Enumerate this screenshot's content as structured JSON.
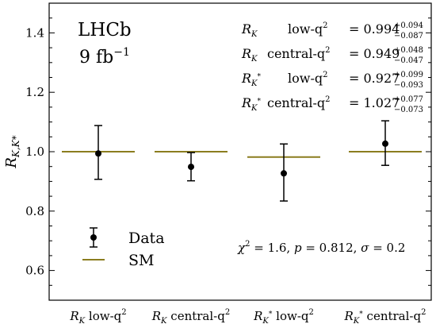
{
  "chart_data": {
    "type": "scatter",
    "experiment": "LHCb",
    "luminosity": "9 fb⁻¹",
    "ylabel": "R_{K,K*}",
    "ylim": [
      0.5,
      1.5
    ],
    "yticks": [
      0.6,
      0.8,
      1.0,
      1.2,
      1.4
    ],
    "ytick_labels": [
      "0.6",
      "0.8",
      "1.0",
      "1.2",
      "1.4"
    ],
    "categories": [
      {
        "main": "R",
        "sub": "K",
        "star": false,
        "tail": " low-q",
        "sup": "2"
      },
      {
        "main": "R",
        "sub": "K",
        "star": false,
        "tail": " central-q",
        "sup": "2"
      },
      {
        "main": "R",
        "sub": "K",
        "star": true,
        "tail": " low-q",
        "sup": "2"
      },
      {
        "main": "R",
        "sub": "K",
        "star": true,
        "tail": " central-q",
        "sup": "2"
      }
    ],
    "series": [
      {
        "name": "Data",
        "values": [
          0.994,
          0.949,
          0.927,
          1.027
        ],
        "err_plus": [
          0.094,
          0.048,
          0.099,
          0.077
        ],
        "err_minus": [
          0.087,
          0.047,
          0.093,
          0.073
        ],
        "color": "#000000"
      },
      {
        "name": "SM",
        "values": [
          1.0,
          1.0,
          0.982,
          1.0
        ],
        "color": "#8b7d1f"
      }
    ],
    "annotations": [
      {
        "label_main": "R",
        "label_sub": "K",
        "star": false,
        "region": "low-q",
        "value": "0.994",
        "plus": "+0.094",
        "minus": "−0.087"
      },
      {
        "label_main": "R",
        "label_sub": "K",
        "star": false,
        "region": "central-q",
        "value": "0.949",
        "plus": "+0.048",
        "minus": "−0.047"
      },
      {
        "label_main": "R",
        "label_sub": "K",
        "star": true,
        "region": "low-q",
        "value": "0.927",
        "plus": "+0.099",
        "minus": "−0.093"
      },
      {
        "label_main": "R",
        "label_sub": "K",
        "star": true,
        "region": "central-q",
        "value": "1.027",
        "plus": "+0.077",
        "minus": "−0.073"
      }
    ],
    "stats": {
      "chi2": "1.6",
      "p": "0.812",
      "sigma": "0.2"
    },
    "legend": [
      "Data",
      "SM"
    ],
    "legend_position": "bottom-left"
  }
}
